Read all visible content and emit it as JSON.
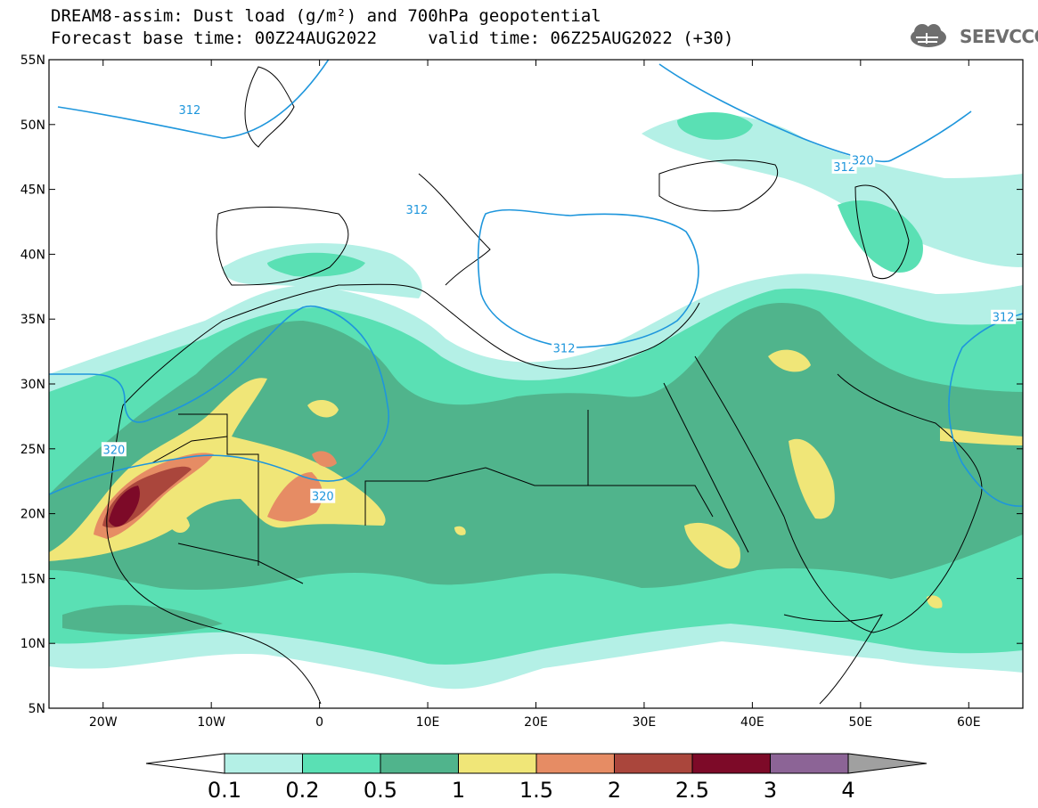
{
  "title": {
    "line1": "DREAM8-assim: Dust load (g/m²) and 700hPa geopotential",
    "line2": "Forecast base time: 00Z24AUG2022     valid time: 06Z25AUG2022 (+30)"
  },
  "logo": {
    "text": "SEEVCCC",
    "icon": "cloud-logo-icon"
  },
  "map": {
    "lon_range": [
      -25,
      65
    ],
    "lat_range": [
      5,
      55
    ],
    "lat_ticks": [
      {
        "value": 55,
        "label": "55N"
      },
      {
        "value": 50,
        "label": "50N"
      },
      {
        "value": 45,
        "label": "45N"
      },
      {
        "value": 40,
        "label": "40N"
      },
      {
        "value": 35,
        "label": "35N"
      },
      {
        "value": 30,
        "label": "30N"
      },
      {
        "value": 25,
        "label": "25N"
      },
      {
        "value": 20,
        "label": "20N"
      },
      {
        "value": 15,
        "label": "15N"
      },
      {
        "value": 10,
        "label": "10N"
      },
      {
        "value": 5,
        "label": "5N"
      }
    ],
    "lon_ticks": [
      {
        "value": -20,
        "label": "20W"
      },
      {
        "value": -10,
        "label": "10W"
      },
      {
        "value": 0,
        "label": "0"
      },
      {
        "value": 10,
        "label": "10E"
      },
      {
        "value": 20,
        "label": "20E"
      },
      {
        "value": 30,
        "label": "30E"
      },
      {
        "value": 40,
        "label": "40E"
      },
      {
        "value": 50,
        "label": "50E"
      },
      {
        "value": 60,
        "label": "60E"
      }
    ],
    "contour_labels": [
      {
        "text": "312",
        "lon": -12,
        "lat": 51.1
      },
      {
        "text": "312",
        "lon": 9,
        "lat": 43.4
      },
      {
        "text": "312",
        "lon": 48.5,
        "lat": 46.7
      },
      {
        "text": "312",
        "lon": 22.6,
        "lat": 32.7
      },
      {
        "text": "312",
        "lon": 63.2,
        "lat": 35.1
      },
      {
        "text": "320",
        "lon": -19,
        "lat": 24.9
      },
      {
        "text": "320",
        "lon": 0.3,
        "lat": 21.3
      },
      {
        "text": "320",
        "lon": 50.2,
        "lat": 47.2
      }
    ]
  },
  "colorbar": {
    "colors": [
      "#b4f0e6",
      "#5ae0b4",
      "#50b48c",
      "#f0e678",
      "#e68c64",
      "#aa463c",
      "#7d0a28",
      "#8c6496"
    ],
    "under_color": "#ffffff",
    "over_color": "#a0a0a0",
    "labels": [
      "0.1",
      "0.2",
      "0.5",
      "1",
      "1.5",
      "2",
      "2.5",
      "3",
      "4"
    ]
  },
  "colors": {
    "contour": "#1e96dc",
    "coast": "#000000"
  }
}
